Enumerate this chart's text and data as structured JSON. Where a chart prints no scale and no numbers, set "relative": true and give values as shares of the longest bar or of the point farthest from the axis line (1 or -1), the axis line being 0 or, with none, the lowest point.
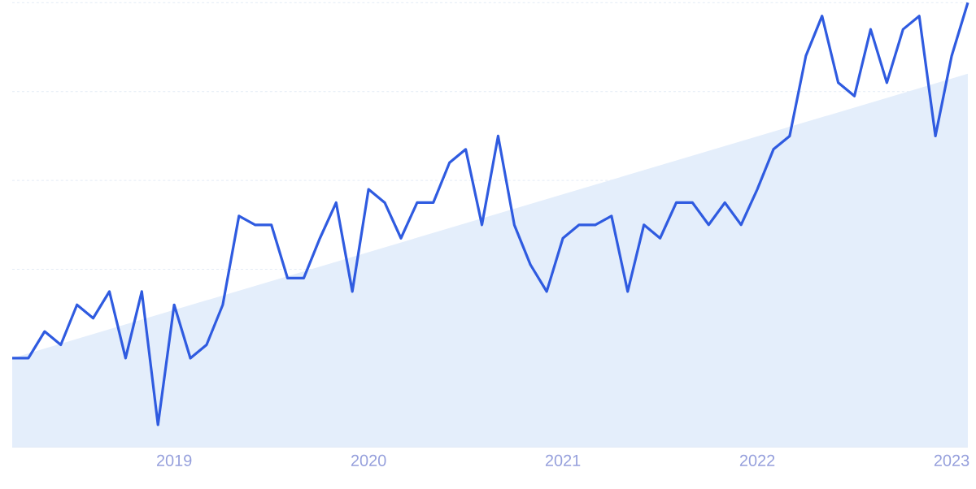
{
  "chart_data": {
    "type": "line",
    "relative": true,
    "grid": "y",
    "tick_labels": "x",
    "marker": "none",
    "line_style": "solid",
    "x": [
      "2018-03",
      "2018-04",
      "2018-05",
      "2018-06",
      "2018-07",
      "2018-08",
      "2018-09",
      "2018-10",
      "2018-11",
      "2018-12",
      "2019-01",
      "2019-02",
      "2019-03",
      "2019-04",
      "2019-05",
      "2019-06",
      "2019-07",
      "2019-08",
      "2019-09",
      "2019-10",
      "2019-11",
      "2019-12",
      "2020-01",
      "2020-02",
      "2020-03",
      "2020-04",
      "2020-05",
      "2020-06",
      "2020-07",
      "2020-08",
      "2020-09",
      "2020-10",
      "2020-11",
      "2020-12",
      "2021-01",
      "2021-02",
      "2021-03",
      "2021-04",
      "2021-05",
      "2021-06",
      "2021-07",
      "2021-08",
      "2021-09",
      "2021-10",
      "2021-11",
      "2021-12",
      "2022-01",
      "2022-02",
      "2022-03",
      "2022-04",
      "2022-05",
      "2022-06",
      "2022-07",
      "2022-08",
      "2022-09",
      "2022-10",
      "2022-11",
      "2022-12",
      "2023-01",
      "2023-02"
    ],
    "xlim": [
      "2018-03",
      "2023-02"
    ],
    "xticks": [
      "2019",
      "2020",
      "2021",
      "2022",
      "2023"
    ],
    "series": [
      {
        "type": "area",
        "color": "#e4eefb",
        "x": [
          "2018-03",
          "2023-02"
        ],
        "values": [
          0.2,
          0.84
        ]
      },
      {
        "color": "#2f5be0",
        "values": [
          0.2,
          0.2,
          0.26,
          0.23,
          0.32,
          0.29,
          0.35,
          0.2,
          0.35,
          0.05,
          0.32,
          0.2,
          0.23,
          0.32,
          0.52,
          0.5,
          0.5,
          0.38,
          0.38,
          0.47,
          0.55,
          0.35,
          0.58,
          0.55,
          0.47,
          0.55,
          0.55,
          0.64,
          0.67,
          0.5,
          0.7,
          0.5,
          0.41,
          0.35,
          0.47,
          0.5,
          0.5,
          0.52,
          0.35,
          0.5,
          0.47,
          0.55,
          0.55,
          0.5,
          0.55,
          0.5,
          0.58,
          0.67,
          0.7,
          0.88,
          0.97,
          0.82,
          0.79,
          0.94,
          0.82,
          0.94,
          0.97,
          0.7,
          0.88,
          1
        ]
      }
    ]
  }
}
